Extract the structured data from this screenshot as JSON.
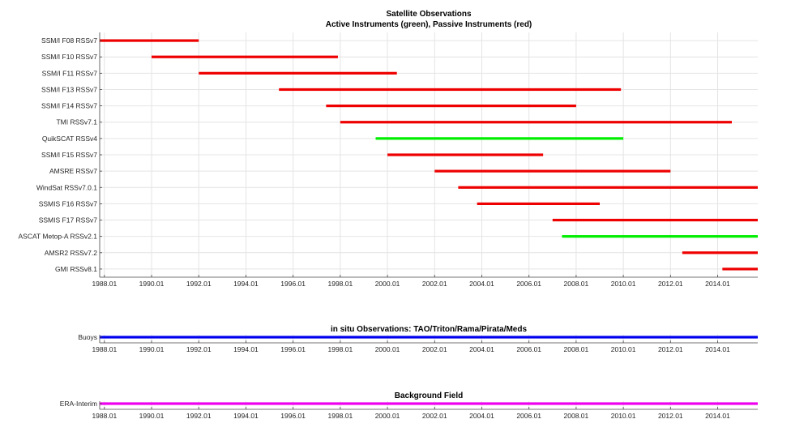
{
  "chart_data": [
    {
      "type": "bar",
      "orientation": "horizontal",
      "title": "Satellite Observations",
      "subtitle": "Active Instruments (green), Passive Instruments (red)",
      "xlim": [
        1987.8,
        2015.7
      ],
      "xticks": [
        1988,
        1990,
        1992,
        1994,
        1996,
        1998,
        2000,
        2002,
        2004,
        2006,
        2008,
        2010,
        2012,
        2014
      ],
      "xtick_labels": [
        "1988.01",
        "1990.01",
        "1992.01",
        "1994.01",
        "1996.01",
        "1998.01",
        "2000.01",
        "2002.01",
        "2004.01",
        "2006.01",
        "2008.01",
        "2010.01",
        "2012.01",
        "2014.01"
      ],
      "grid": true,
      "colors": {
        "active": "#00ee00",
        "passive": "#ee0000"
      },
      "bars": [
        {
          "label": "SSM/I F08 RSSv7",
          "start": 1987.8,
          "end": 1992.0,
          "kind": "passive"
        },
        {
          "label": "SSM/I F10 RSSv7",
          "start": 1990.0,
          "end": 1997.9,
          "kind": "passive"
        },
        {
          "label": "SSM/I F11 RSSv7",
          "start": 1992.0,
          "end": 2000.4,
          "kind": "passive"
        },
        {
          "label": "SSM/I F13 RSSv7",
          "start": 1995.4,
          "end": 2009.9,
          "kind": "passive"
        },
        {
          "label": "SSM/I F14 RSSv7",
          "start": 1997.4,
          "end": 2008.0,
          "kind": "passive"
        },
        {
          "label": "TMI RSSv7.1",
          "start": 1998.0,
          "end": 2014.6,
          "kind": "passive"
        },
        {
          "label": "QuikSCAT RSSv4",
          "start": 1999.5,
          "end": 2010.0,
          "kind": "active"
        },
        {
          "label": "SSM/I F15 RSSv7",
          "start": 2000.0,
          "end": 2006.6,
          "kind": "passive"
        },
        {
          "label": "AMSRE RSSv7",
          "start": 2002.0,
          "end": 2012.0,
          "kind": "passive"
        },
        {
          "label": "WindSat RSSv7.0.1",
          "start": 2003.0,
          "end": 2015.7,
          "kind": "passive"
        },
        {
          "label": "SSMIS F16 RSSv7",
          "start": 2003.8,
          "end": 2009.0,
          "kind": "passive"
        },
        {
          "label": "SSMIS F17 RSSv7",
          "start": 2007.0,
          "end": 2015.7,
          "kind": "passive"
        },
        {
          "label": "ASCAT Metop-A RSSv2.1",
          "start": 2007.4,
          "end": 2015.7,
          "kind": "active"
        },
        {
          "label": "AMSR2 RSSv7.2",
          "start": 2012.5,
          "end": 2015.7,
          "kind": "passive"
        },
        {
          "label": "GMI RSSv8.1",
          "start": 2014.2,
          "end": 2015.7,
          "kind": "passive"
        }
      ]
    },
    {
      "type": "bar",
      "orientation": "horizontal",
      "title": "in situ Observations: TAO/Triton/Rama/Pirata/Meds",
      "xlim": [
        1987.8,
        2015.7
      ],
      "grid": true,
      "colors": {
        "bar": "#0000ee"
      },
      "bars": [
        {
          "label": "Buoys",
          "start": 1987.8,
          "end": 2015.7
        }
      ]
    },
    {
      "type": "bar",
      "orientation": "horizontal",
      "title": "Background Field",
      "xlim": [
        1987.8,
        2015.7
      ],
      "grid": true,
      "colors": {
        "bar": "#ee00ee"
      },
      "bars": [
        {
          "label": "ERA-Interim",
          "start": 1987.8,
          "end": 2015.7
        }
      ]
    }
  ]
}
